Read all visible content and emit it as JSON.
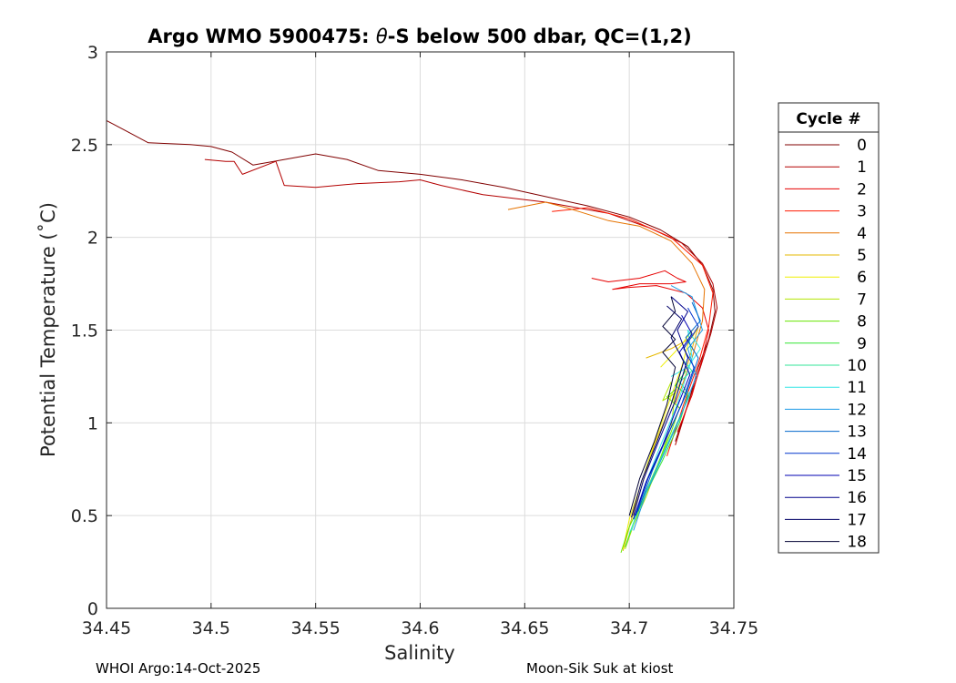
{
  "chart_data": {
    "type": "line",
    "title": {
      "prefix": "Argo WMO 5900475: ",
      "theta": "θ",
      "suffix": "-S below 500 dbar,  QC=(1,2)"
    },
    "xlabel": "Salinity",
    "ylabel": "Potential Temperature (˚C)",
    "xlim": [
      34.45,
      34.75
    ],
    "ylim": [
      0,
      3
    ],
    "xticks": [
      "34.45",
      "34.5",
      "34.55",
      "34.6",
      "34.65",
      "34.7",
      "34.75"
    ],
    "yticks": [
      "0",
      "0.5",
      "1",
      "1.5",
      "2",
      "2.5",
      "3"
    ],
    "grid": true,
    "legend": {
      "title": "Cycle #",
      "position": "right"
    },
    "series": [
      {
        "name": "0",
        "color": "#800000",
        "x": [
          34.45,
          34.46,
          34.47,
          34.49,
          34.5,
          34.51,
          34.52,
          34.53,
          34.55,
          34.565,
          34.58,
          34.6,
          34.62,
          34.64,
          34.66,
          34.68,
          34.7,
          34.715,
          34.728,
          34.735,
          34.74,
          34.741,
          34.738,
          34.733,
          34.728,
          34.722
        ],
        "y": [
          2.63,
          2.57,
          2.51,
          2.5,
          2.49,
          2.46,
          2.39,
          2.41,
          2.45,
          2.42,
          2.36,
          2.34,
          2.31,
          2.27,
          2.22,
          2.17,
          2.11,
          2.04,
          1.95,
          1.85,
          1.72,
          1.6,
          1.45,
          1.3,
          1.1,
          0.9
        ]
      },
      {
        "name": "1",
        "color": "#b30000",
        "x": [
          34.497,
          34.507,
          34.511,
          34.515,
          34.531,
          34.535,
          34.55,
          34.57,
          34.59,
          34.6,
          34.61,
          34.63,
          34.66,
          34.69,
          34.71,
          34.725,
          34.735,
          34.74,
          34.742,
          34.739,
          34.734,
          34.728,
          34.722
        ],
        "y": [
          2.42,
          2.41,
          2.41,
          2.34,
          2.41,
          2.28,
          2.27,
          2.29,
          2.3,
          2.31,
          2.28,
          2.23,
          2.19,
          2.13,
          2.05,
          1.97,
          1.86,
          1.75,
          1.62,
          1.48,
          1.3,
          1.1,
          0.88
        ]
      },
      {
        "name": "2",
        "color": "#e60000",
        "x": [
          34.682,
          34.69,
          34.705,
          34.717,
          34.723,
          34.727,
          34.72,
          34.705,
          34.692,
          34.699,
          34.713,
          34.727,
          34.735,
          34.738,
          34.735,
          34.73,
          34.723
        ],
        "y": [
          1.78,
          1.76,
          1.78,
          1.82,
          1.78,
          1.76,
          1.75,
          1.75,
          1.72,
          1.73,
          1.74,
          1.7,
          1.62,
          1.5,
          1.35,
          1.15,
          0.95
        ]
      },
      {
        "name": "3",
        "color": "#ff1a00",
        "x": [
          34.663,
          34.68,
          34.7,
          34.72,
          34.735,
          34.74,
          34.738,
          34.733,
          34.726,
          34.718
        ],
        "y": [
          2.14,
          2.16,
          2.1,
          2.0,
          1.85,
          1.7,
          1.52,
          1.32,
          1.1,
          0.82
        ]
      },
      {
        "name": "4",
        "color": "#e67300",
        "x": [
          34.642,
          34.66,
          34.67,
          34.69,
          34.705,
          34.72,
          34.73,
          34.736,
          34.735,
          34.73,
          34.722
        ],
        "y": [
          2.15,
          2.19,
          2.16,
          2.09,
          2.06,
          1.98,
          1.86,
          1.72,
          1.55,
          1.35,
          1.1
        ]
      },
      {
        "name": "5",
        "color": "#e6b800",
        "x": [
          34.708,
          34.72,
          34.73,
          34.733,
          34.728,
          34.72,
          34.712,
          34.706,
          34.701,
          34.697
        ],
        "y": [
          1.35,
          1.4,
          1.46,
          1.52,
          1.32,
          1.1,
          0.88,
          0.66,
          0.48,
          0.31
        ]
      },
      {
        "name": "6",
        "color": "#f0f000",
        "x": [
          34.715,
          34.725,
          34.73,
          34.725,
          34.718,
          34.711,
          34.705,
          34.7,
          34.697
        ],
        "y": [
          1.3,
          1.42,
          1.5,
          1.3,
          1.08,
          0.86,
          0.65,
          0.48,
          0.32
        ]
      },
      {
        "name": "7",
        "color": "#b3e600",
        "x": [
          34.72,
          34.716,
          34.722,
          34.72,
          34.714,
          34.708,
          34.702,
          34.698
        ],
        "y": [
          1.22,
          1.12,
          1.16,
          0.98,
          0.78,
          0.6,
          0.45,
          0.32
        ]
      },
      {
        "name": "8",
        "color": "#66e600",
        "x": [
          34.722,
          34.718,
          34.724,
          34.72,
          34.713,
          34.706,
          34.7,
          34.696
        ],
        "y": [
          1.18,
          1.14,
          1.08,
          0.95,
          0.76,
          0.58,
          0.44,
          0.3
        ]
      },
      {
        "name": "9",
        "color": "#33e633",
        "x": [
          34.727,
          34.722,
          34.728,
          34.724,
          34.716,
          34.708,
          34.702,
          34.698
        ],
        "y": [
          1.28,
          1.2,
          1.15,
          1.0,
          0.8,
          0.62,
          0.46,
          0.33
        ]
      },
      {
        "name": "10",
        "color": "#33e699",
        "x": [
          34.725,
          34.73,
          34.724,
          34.729,
          34.722,
          34.714,
          34.706,
          34.7
        ],
        "y": [
          1.35,
          1.28,
          1.22,
          1.15,
          0.98,
          0.78,
          0.58,
          0.4
        ]
      },
      {
        "name": "11",
        "color": "#33e6e6",
        "x": [
          34.72,
          34.728,
          34.734,
          34.728,
          34.73,
          34.723,
          34.715,
          34.707,
          34.701
        ],
        "y": [
          1.25,
          1.3,
          1.4,
          1.5,
          1.35,
          1.1,
          0.88,
          0.65,
          0.42
        ]
      },
      {
        "name": "12",
        "color": "#1a99e6",
        "x": [
          34.72,
          34.73,
          34.735,
          34.728,
          34.732,
          34.724,
          34.716,
          34.708,
          34.702
        ],
        "y": [
          1.74,
          1.68,
          1.5,
          1.4,
          1.25,
          1.02,
          0.82,
          0.62,
          0.42
        ]
      },
      {
        "name": "13",
        "color": "#0066cc",
        "x": [
          34.73,
          34.734,
          34.727,
          34.733,
          34.727,
          34.719,
          34.711,
          34.704
        ],
        "y": [
          1.65,
          1.55,
          1.46,
          1.35,
          1.15,
          0.95,
          0.74,
          0.52
        ]
      },
      {
        "name": "14",
        "color": "#0033cc",
        "x": [
          34.728,
          34.733,
          34.726,
          34.731,
          34.725,
          34.717,
          34.709,
          34.703
        ],
        "y": [
          1.62,
          1.52,
          1.4,
          1.3,
          1.1,
          0.9,
          0.7,
          0.5
        ]
      },
      {
        "name": "15",
        "color": "#0000b3",
        "x": [
          34.725,
          34.73,
          34.724,
          34.729,
          34.722,
          34.716,
          34.708,
          34.702
        ],
        "y": [
          1.58,
          1.48,
          1.38,
          1.26,
          1.06,
          0.88,
          0.68,
          0.48
        ]
      },
      {
        "name": "16",
        "color": "#00008c",
        "x": [
          34.72,
          34.728,
          34.723,
          34.728,
          34.722,
          34.714,
          34.707,
          34.702
        ],
        "y": [
          1.68,
          1.6,
          1.5,
          1.35,
          1.12,
          0.9,
          0.7,
          0.5
        ]
      },
      {
        "name": "17",
        "color": "#000066",
        "x": [
          34.718,
          34.725,
          34.72,
          34.726,
          34.72,
          34.713,
          34.706,
          34.701
        ],
        "y": [
          1.63,
          1.56,
          1.46,
          1.33,
          1.1,
          0.89,
          0.69,
          0.49
        ]
      },
      {
        "name": "18",
        "color": "#000033",
        "x": [
          34.72,
          34.722,
          34.716,
          34.722,
          34.716,
          34.722,
          34.718,
          34.712,
          34.705,
          34.7
        ],
        "y": [
          1.68,
          1.6,
          1.52,
          1.45,
          1.38,
          1.3,
          1.1,
          0.9,
          0.7,
          0.5
        ]
      }
    ]
  },
  "footer": {
    "left": "WHOI Argo:14-Oct-2025",
    "right": "Moon-Sik Suk at kiost"
  }
}
